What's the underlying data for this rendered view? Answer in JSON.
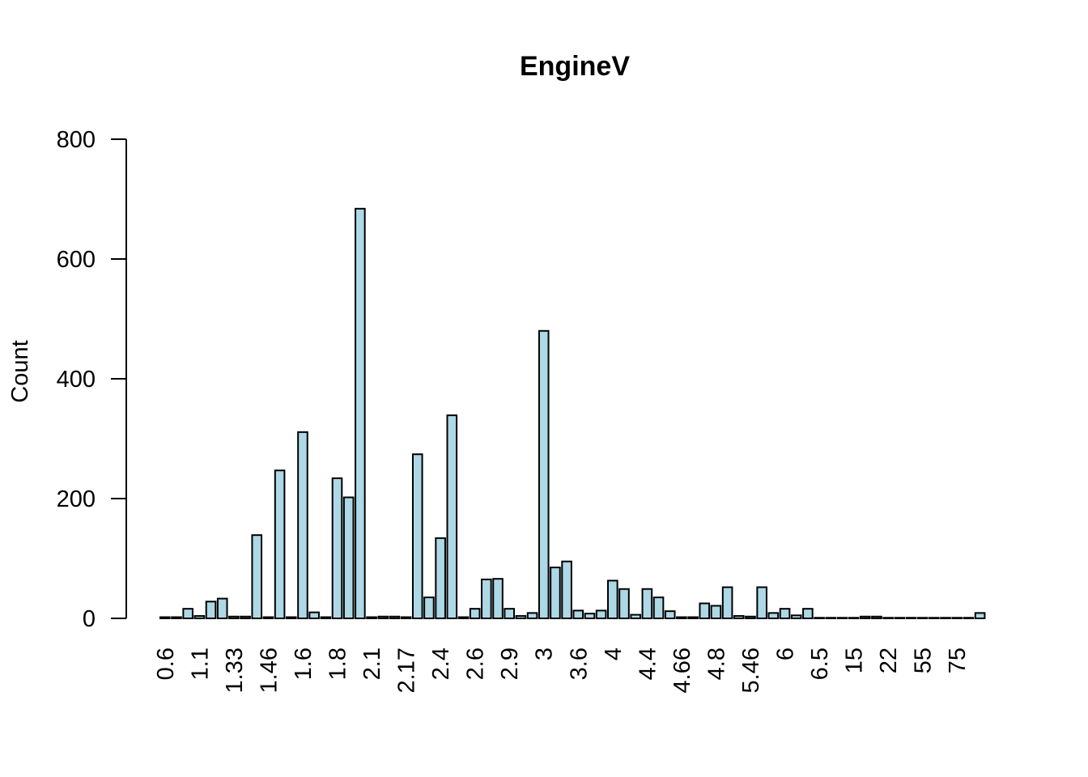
{
  "chart_data": {
    "type": "bar",
    "title": "EngineV",
    "xlabel": "",
    "ylabel": "Count",
    "ylim": [
      0,
      800
    ],
    "yticks": [
      0,
      200,
      400,
      600,
      800
    ],
    "bar_color": "#ADD8E6",
    "grid": false,
    "values": [
      2,
      2,
      16,
      4,
      28,
      33,
      3,
      3,
      139,
      2,
      247,
      2,
      311,
      10,
      2,
      234,
      202,
      684,
      2,
      3,
      3,
      2,
      274,
      35,
      134,
      339,
      2,
      16,
      65,
      66,
      16,
      4,
      9,
      480,
      85,
      95,
      13,
      8,
      13,
      63,
      49,
      6,
      49,
      35,
      12,
      2,
      2,
      25,
      21,
      52,
      4,
      3,
      52,
      9,
      16,
      5,
      16,
      1,
      1,
      1,
      1,
      3,
      3,
      1,
      1,
      1,
      1,
      1,
      1,
      1,
      1,
      9
    ],
    "tick_labels": [
      {
        "bar": 0,
        "label": "0.6"
      },
      {
        "bar": 3,
        "label": "1.1"
      },
      {
        "bar": 6,
        "label": "1.33"
      },
      {
        "bar": 9,
        "label": "1.46"
      },
      {
        "bar": 12,
        "label": "1.6"
      },
      {
        "bar": 15,
        "label": "1.8"
      },
      {
        "bar": 18,
        "label": "2.1"
      },
      {
        "bar": 21,
        "label": "2.17"
      },
      {
        "bar": 24,
        "label": "2.4"
      },
      {
        "bar": 27,
        "label": "2.6"
      },
      {
        "bar": 30,
        "label": "2.9"
      },
      {
        "bar": 33,
        "label": "3"
      },
      {
        "bar": 36,
        "label": "3.6"
      },
      {
        "bar": 39,
        "label": "4"
      },
      {
        "bar": 42,
        "label": "4.4"
      },
      {
        "bar": 45,
        "label": "4.66"
      },
      {
        "bar": 48,
        "label": "4.8"
      },
      {
        "bar": 51,
        "label": "5.46"
      },
      {
        "bar": 54,
        "label": "6"
      },
      {
        "bar": 57,
        "label": "6.5"
      },
      {
        "bar": 60,
        "label": "15"
      },
      {
        "bar": 63,
        "label": "22"
      },
      {
        "bar": 66,
        "label": "55"
      },
      {
        "bar": 69,
        "label": "75"
      }
    ]
  }
}
